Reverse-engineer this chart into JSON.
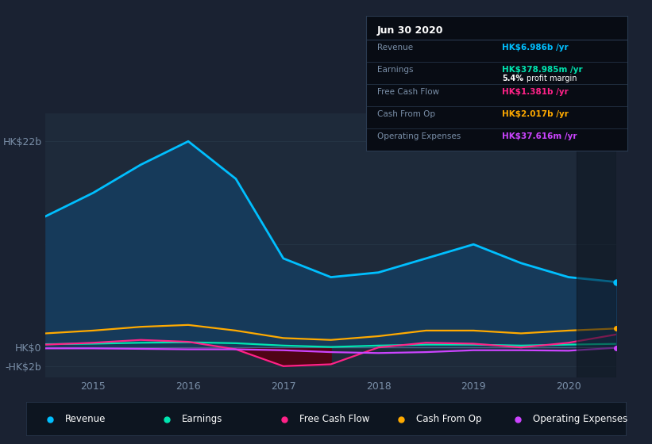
{
  "background_color": "#1a2232",
  "plot_bg_color": "#1e2a3a",
  "grid_color": "#263545",
  "x_data": [
    2014.5,
    2015.0,
    2015.5,
    2016.0,
    2016.5,
    2017.0,
    2017.5,
    2018.0,
    2018.5,
    2019.0,
    2019.5,
    2020.0,
    2020.5
  ],
  "revenue": [
    14.0,
    16.5,
    19.5,
    22.0,
    18.0,
    9.5,
    7.5,
    8.0,
    9.5,
    11.0,
    9.0,
    7.5,
    6.986
  ],
  "earnings": [
    0.35,
    0.4,
    0.5,
    0.55,
    0.45,
    0.2,
    0.05,
    0.2,
    0.3,
    0.3,
    0.2,
    0.3,
    0.379
  ],
  "free_cash_flow": [
    0.3,
    0.5,
    0.8,
    0.6,
    -0.2,
    -2.0,
    -1.8,
    0.0,
    0.5,
    0.4,
    0.0,
    0.5,
    1.381
  ],
  "cash_from_op": [
    1.5,
    1.8,
    2.2,
    2.4,
    1.8,
    1.0,
    0.8,
    1.2,
    1.8,
    1.8,
    1.5,
    1.8,
    2.017
  ],
  "operating_expenses": [
    -0.1,
    -0.1,
    -0.15,
    -0.2,
    -0.2,
    -0.3,
    -0.5,
    -0.6,
    -0.5,
    -0.3,
    -0.3,
    -0.35,
    -0.038
  ],
  "revenue_color": "#00bfff",
  "revenue_fill_color": "#163a5a",
  "earnings_color": "#00e5b0",
  "fcf_color": "#ff2288",
  "cfop_color": "#ffaa00",
  "opex_color": "#cc44ff",
  "fcf_neg_fill": "#550011",
  "ylim": [
    -3.2,
    25.0
  ],
  "yticks": [
    22.0,
    0.0,
    -2.0
  ],
  "ytick_labels": [
    "HK$22b",
    "HK$0",
    "-HK$2b"
  ],
  "xticks": [
    2015,
    2016,
    2017,
    2018,
    2019,
    2020
  ],
  "legend": [
    {
      "label": "Revenue",
      "color": "#00bfff"
    },
    {
      "label": "Earnings",
      "color": "#00e5b0"
    },
    {
      "label": "Free Cash Flow",
      "color": "#ff2288"
    },
    {
      "label": "Cash From Op",
      "color": "#ffaa00"
    },
    {
      "label": "Operating Expenses",
      "color": "#cc44ff"
    }
  ],
  "info_title": "Jun 30 2020",
  "info_rows": [
    {
      "label": "Revenue",
      "value": "HK$6.986b /yr",
      "color": "#00bfff",
      "sub": null
    },
    {
      "label": "Earnings",
      "value": "HK$378.985m /yr",
      "color": "#00e5b0",
      "sub": "5.4% profit margin"
    },
    {
      "label": "Free Cash Flow",
      "value": "HK$1.381b /yr",
      "color": "#ff2288",
      "sub": null
    },
    {
      "label": "Cash From Op",
      "value": "HK$2.017b /yr",
      "color": "#ffaa00",
      "sub": null
    },
    {
      "label": "Operating Expenses",
      "value": "HK$37.616m /yr",
      "color": "#cc44ff",
      "sub": null
    }
  ],
  "sep_color": "#2a3a50",
  "label_color": "#7a8fa8",
  "tick_color": "#7a8fa8"
}
